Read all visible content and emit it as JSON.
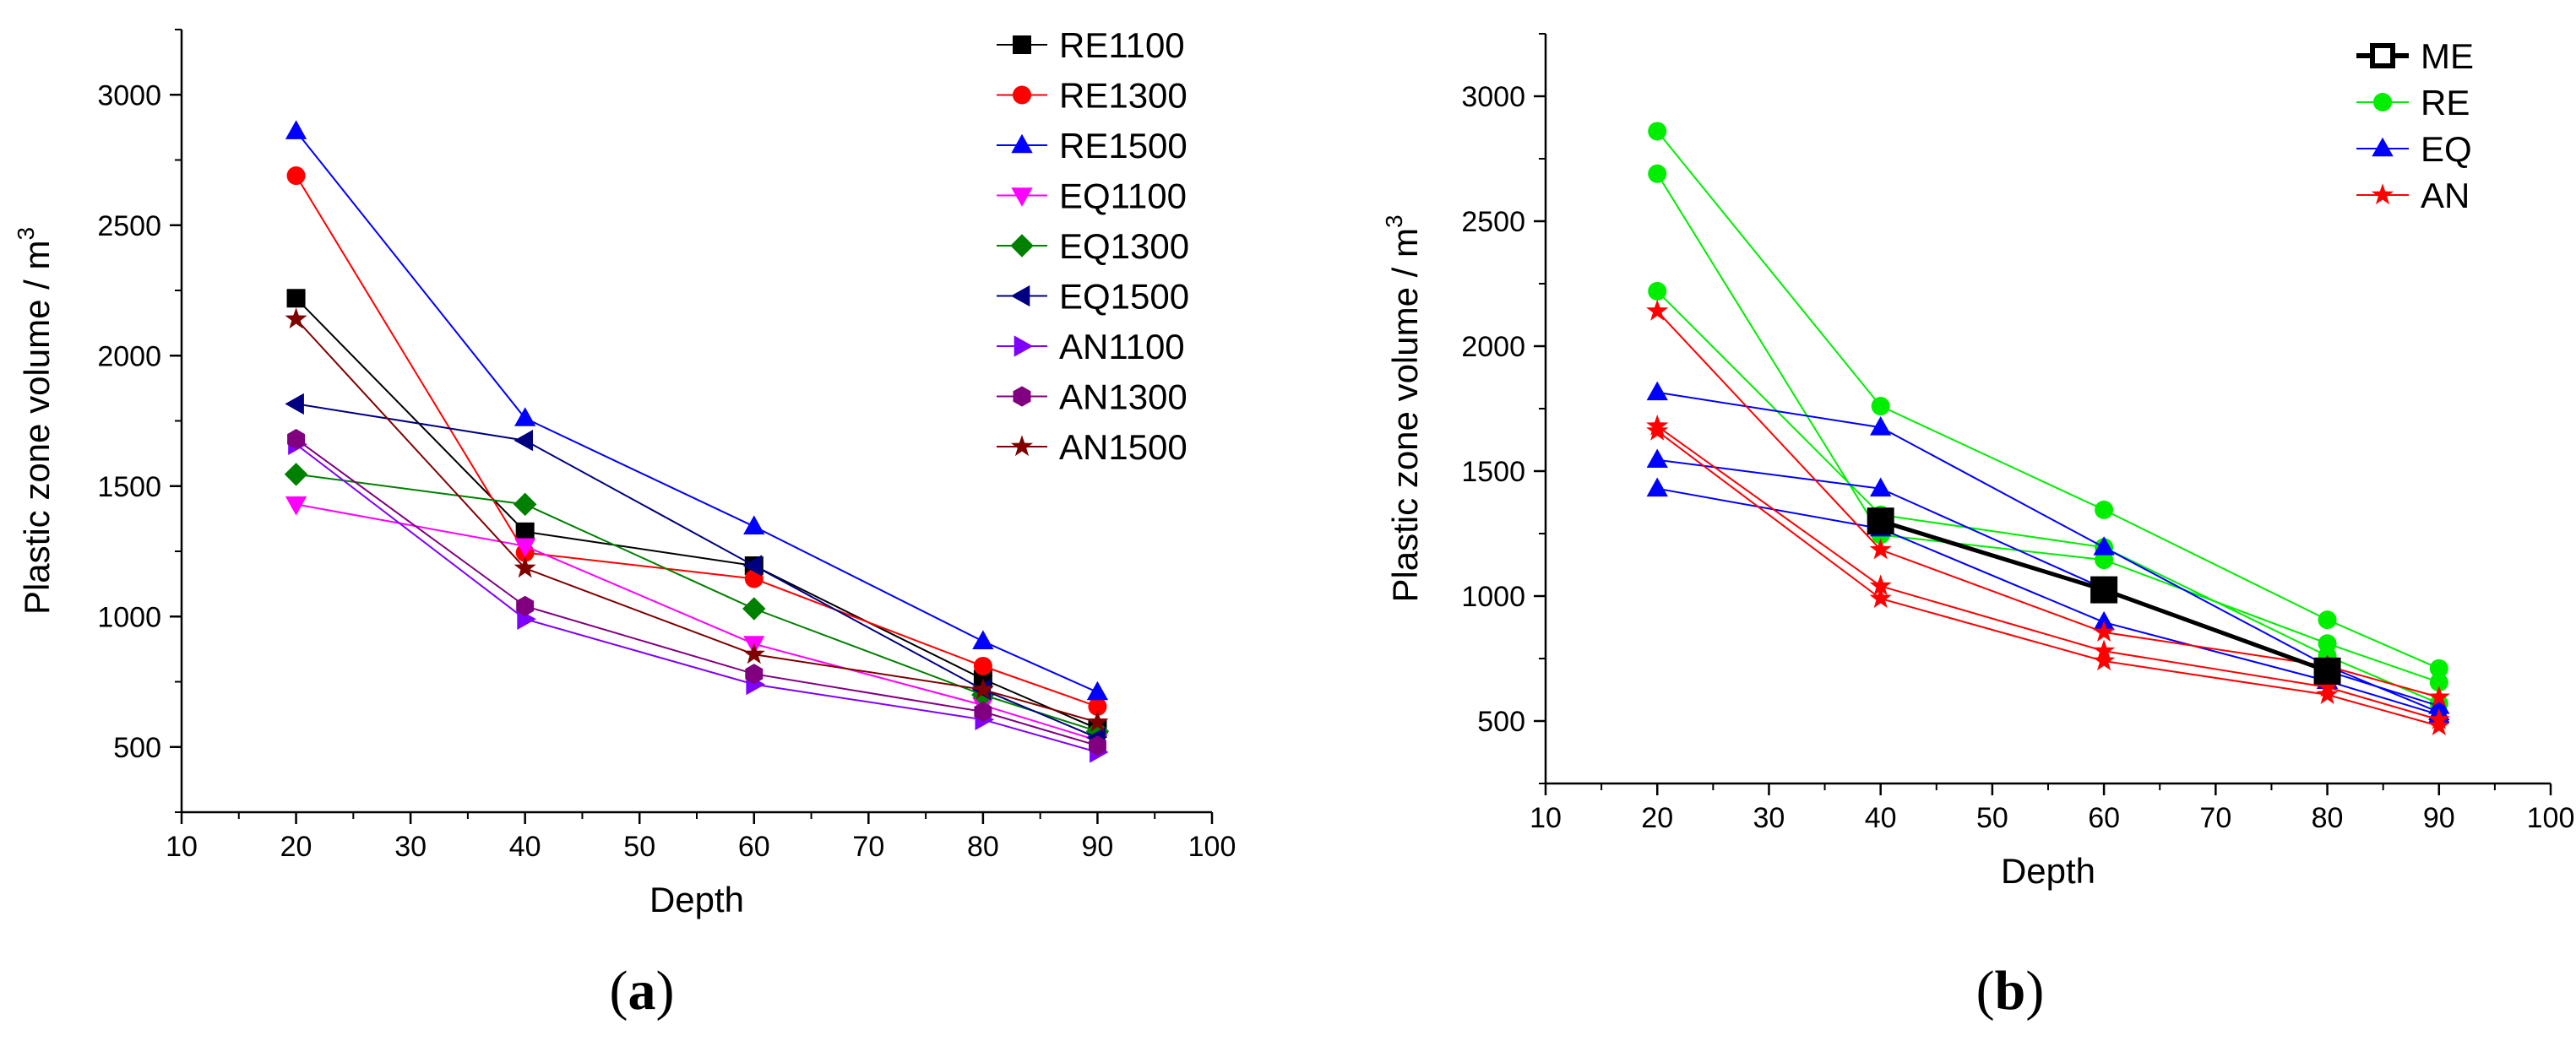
{
  "panel_labels": [
    {
      "open": "(",
      "letter": "a",
      "close": ")"
    },
    {
      "open": "(",
      "letter": "b",
      "close": ")"
    }
  ],
  "chart_data": [
    {
      "type": "line",
      "xlabel": "Depth",
      "ylabel": "Plastic zone volume / m",
      "ylabel_superscript": "3",
      "xlim": [
        10,
        100
      ],
      "ylim": [
        250,
        3250
      ],
      "xticks": [
        10,
        20,
        30,
        40,
        50,
        60,
        70,
        80,
        90,
        100
      ],
      "yticks": [
        500,
        1000,
        1500,
        2000,
        2500,
        3000
      ],
      "legend_position": "top-right",
      "x": [
        20,
        40,
        60,
        80,
        90
      ],
      "series": [
        {
          "name": "RE1100",
          "color": "#000000",
          "marker": "square",
          "values": [
            2220,
            1325,
            1195,
            760,
            570
          ]
        },
        {
          "name": "RE1300",
          "color": "#ff0000",
          "marker": "circle",
          "values": [
            2690,
            1245,
            1145,
            810,
            655
          ]
        },
        {
          "name": "RE1500",
          "color": "#0000ff",
          "marker": "triangle-up",
          "values": [
            2860,
            1760,
            1345,
            905,
            710
          ]
        },
        {
          "name": "EQ1100",
          "color": "#ff00ff",
          "marker": "triangle-down",
          "values": [
            1430,
            1270,
            895,
            660,
            525
          ]
        },
        {
          "name": "EQ1300",
          "color": "#008000",
          "marker": "diamond",
          "values": [
            1545,
            1430,
            1030,
            700,
            560
          ]
        },
        {
          "name": "EQ1500",
          "color": "#000080",
          "marker": "triangle-left",
          "values": [
            1815,
            1675,
            1195,
            720,
            535
          ]
        },
        {
          "name": "AN1100",
          "color": "#8000ff",
          "marker": "triangle-right",
          "values": [
            1660,
            990,
            740,
            605,
            480
          ]
        },
        {
          "name": "AN1300",
          "color": "#800080",
          "marker": "hexagon",
          "values": [
            1680,
            1040,
            780,
            635,
            505
          ]
        },
        {
          "name": "AN1500",
          "color": "#800000",
          "marker": "star",
          "values": [
            2140,
            1185,
            855,
            720,
            595
          ]
        }
      ]
    },
    {
      "type": "line",
      "xlabel": "Depth",
      "ylabel": "Plastic zone volume / m",
      "ylabel_superscript": "3",
      "xlim": [
        10,
        100
      ],
      "ylim": [
        250,
        3250
      ],
      "xticks": [
        10,
        20,
        30,
        40,
        50,
        60,
        70,
        80,
        90,
        100
      ],
      "yticks": [
        500,
        1000,
        1500,
        2000,
        2500,
        3000
      ],
      "legend_position": "top-right",
      "x": [
        20,
        40,
        60,
        80,
        90
      ],
      "series": [
        {
          "name": "RE",
          "color": "#00ee00",
          "marker": "circle",
          "lines": [
            [
              2220,
              1325,
              1195,
              760,
              570
            ],
            [
              2690,
              1245,
              1145,
              810,
              655
            ],
            [
              2860,
              1760,
              1345,
              905,
              710
            ]
          ]
        },
        {
          "name": "EQ",
          "color": "#0000ff",
          "marker": "triangle-up",
          "lines": [
            [
              1430,
              1270,
              895,
              660,
              525
            ],
            [
              1545,
              1430,
              1030,
              700,
              560
            ],
            [
              1815,
              1675,
              1195,
              720,
              535
            ]
          ]
        },
        {
          "name": "AN",
          "color": "#ff0000",
          "marker": "star",
          "lines": [
            [
              1660,
              990,
              740,
              605,
              480
            ],
            [
              1680,
              1040,
              780,
              635,
              505
            ],
            [
              2140,
              1185,
              855,
              720,
              595
            ]
          ]
        },
        {
          "name": "ME",
          "color": "#000000",
          "marker": "square",
          "emphasis": true,
          "x": [
            40,
            60,
            80
          ],
          "values": [
            1300,
            1025,
            700
          ]
        }
      ],
      "legend_order": [
        "ME",
        "RE",
        "EQ",
        "AN"
      ]
    }
  ]
}
